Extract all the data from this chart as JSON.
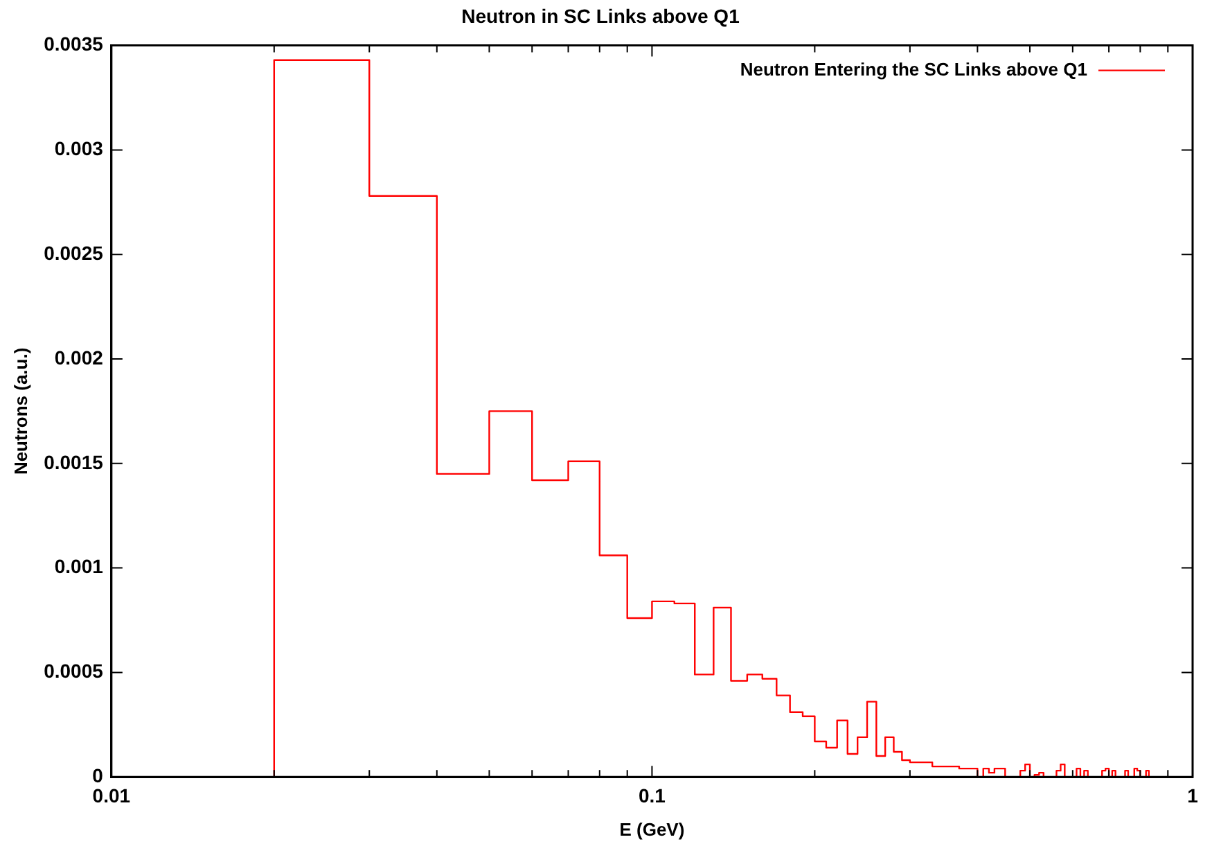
{
  "chart_data": {
    "type": "histogram",
    "title": "Neutron in SC Links above Q1",
    "xlabel": "E (GeV)",
    "ylabel": "Neutrons (a.u.)",
    "log": "x",
    "legend": "top right",
    "bins": [
      0.02,
      0.03,
      0.04,
      0.05,
      0.06,
      0.07,
      0.08,
      0.09,
      0.1,
      0.11,
      0.12,
      0.13,
      0.14,
      0.15,
      0.16,
      0.17,
      0.18,
      0.19,
      0.2,
      0.21,
      0.22,
      0.23,
      0.24,
      0.25,
      0.26,
      0.27,
      0.28,
      0.29,
      0.3,
      0.31,
      0.32,
      0.33,
      0.34,
      0.35,
      0.36,
      0.37,
      0.38,
      0.39,
      0.4,
      0.41,
      0.42,
      0.43,
      0.44,
      0.45,
      0.46,
      0.47,
      0.48,
      0.49,
      0.5,
      0.51,
      0.52,
      0.53,
      0.54,
      0.55,
      0.56,
      0.57,
      0.58,
      0.59,
      0.6,
      0.61,
      0.62,
      0.63,
      0.64,
      0.65,
      0.66,
      0.67,
      0.68,
      0.69,
      0.7,
      0.71,
      0.72,
      0.73,
      0.74,
      0.75,
      0.76,
      0.77,
      0.78,
      0.79,
      0.8,
      0.81,
      0.82,
      0.83
    ],
    "series": [
      {
        "name": "Neutron Entering the SC Links above Q1",
        "color": "#ff0000",
        "values": [
          0.00343,
          0.00278,
          0.00145,
          0.00175,
          0.00142,
          0.00151,
          0.00106,
          0.00076,
          0.00084,
          0.00083,
          0.00049,
          0.00081,
          0.00046,
          0.00049,
          0.00047,
          0.00039,
          0.00031,
          0.00029,
          0.00017,
          0.00014,
          0.00027,
          0.00011,
          0.00019,
          0.00036,
          0.0001,
          0.00019,
          0.00012,
          8e-05,
          7e-05,
          7e-05,
          7e-05,
          5e-05,
          5e-05,
          5e-05,
          5e-05,
          4e-05,
          4e-05,
          4e-05,
          0,
          4e-05,
          2e-05,
          4e-05,
          4e-05,
          0,
          0,
          0,
          3e-05,
          6e-05,
          0,
          1e-05,
          2e-05,
          0,
          0,
          0,
          3e-05,
          6e-05,
          0,
          0,
          0,
          4e-05,
          0,
          3e-05,
          0,
          0,
          0,
          0,
          3e-05,
          4e-05,
          0,
          3e-05,
          0,
          0,
          0,
          3e-05,
          0,
          0,
          4e-05,
          3e-05,
          0,
          0,
          3e-05
        ]
      }
    ],
    "xlim": [
      0.01,
      1
    ],
    "ylim": [
      0,
      0.0035
    ],
    "xticks": [
      0.01,
      {
        "value": 0.02,
        "label": null
      },
      {
        "value": 0.03,
        "label": null
      },
      {
        "value": 0.04,
        "label": null
      },
      {
        "value": 0.05,
        "label": null
      },
      {
        "value": 0.06,
        "label": null
      },
      {
        "value": 0.07,
        "label": null
      },
      {
        "value": 0.08,
        "label": null
      },
      {
        "value": 0.09,
        "label": null
      },
      0.1,
      {
        "value": 0.2,
        "label": null
      },
      {
        "value": 0.3,
        "label": null
      },
      {
        "value": 0.4,
        "label": null
      },
      {
        "value": 0.5,
        "label": null
      },
      {
        "value": 0.6,
        "label": null
      },
      {
        "value": 0.7,
        "label": null
      },
      {
        "value": 0.8,
        "label": null
      },
      {
        "value": 0.9,
        "label": null
      },
      1
    ],
    "yticks": [
      0,
      0.0005,
      0.001,
      0.0015,
      0.002,
      0.0025,
      0.003,
      0.0035
    ]
  }
}
